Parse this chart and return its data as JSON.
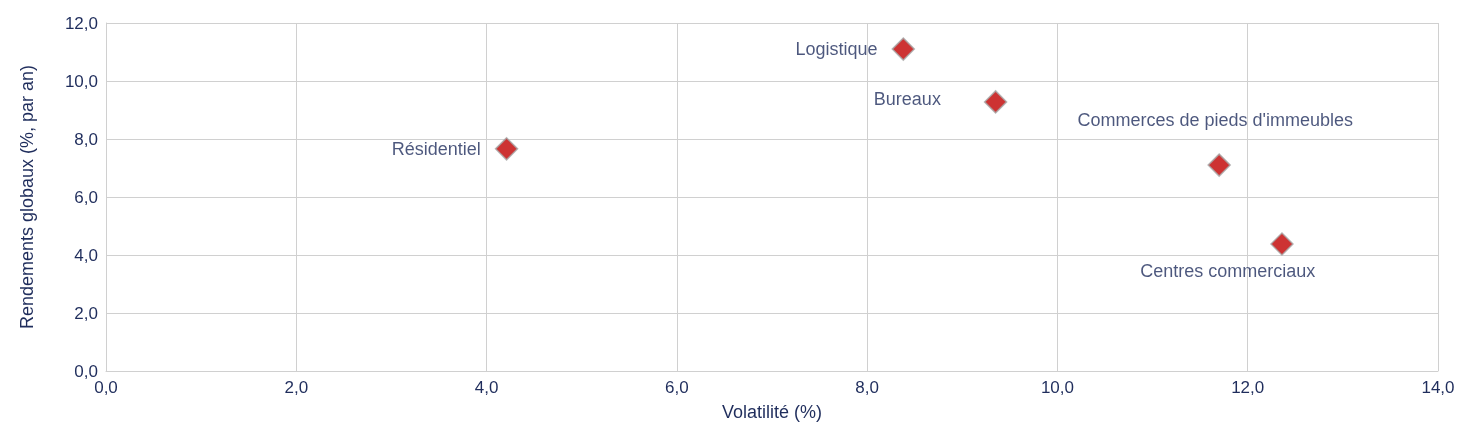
{
  "chart_data": {
    "type": "scatter",
    "xlabel": "Volatilité (%)",
    "ylabel": "Rendements globaux (%, par an)",
    "series": [
      {
        "name": "Résidentiel",
        "color": "#c00000",
        "x": [
          4.21
        ],
        "values": [
          7.66
        ]
      },
      {
        "name": "Logistique",
        "color": "#c00000",
        "x": [
          8.38
        ],
        "values": [
          11.1
        ]
      },
      {
        "name": "Bureaux",
        "color": "#c00000",
        "x": [
          9.35
        ],
        "values": [
          9.28
        ]
      },
      {
        "name": "Commerces de pieds d'immeubles",
        "color": "#c00000",
        "x": [
          11.7
        ],
        "values": [
          7.1
        ]
      },
      {
        "name": "Centres commerciaux",
        "color": "#c00000",
        "x": [
          12.36
        ],
        "values": [
          4.38
        ]
      }
    ],
    "xlim": [
      0,
      14
    ],
    "xticks": [
      {
        "value": 0,
        "label": "0,0"
      },
      {
        "value": 2,
        "label": "2,0"
      },
      {
        "value": 4,
        "label": "4,0"
      },
      {
        "value": 6,
        "label": "6,0"
      },
      {
        "value": 8,
        "label": "8,0"
      },
      {
        "value": 10,
        "label": "10,0"
      },
      {
        "value": 12,
        "label": "12,0"
      },
      {
        "value": 14,
        "label": "14,0"
      }
    ],
    "ylim": [
      0,
      12
    ],
    "yticks": [
      {
        "value": 0,
        "label": "0,0"
      },
      {
        "value": 2,
        "label": "2,0"
      },
      {
        "value": 4,
        "label": "4,0"
      },
      {
        "value": 6,
        "label": "6,0"
      },
      {
        "value": 8,
        "label": "8,0"
      },
      {
        "value": 10,
        "label": "10,0"
      },
      {
        "value": 12,
        "label": "12,0"
      }
    ],
    "grid": true,
    "marker": "diamond",
    "legend": false
  }
}
